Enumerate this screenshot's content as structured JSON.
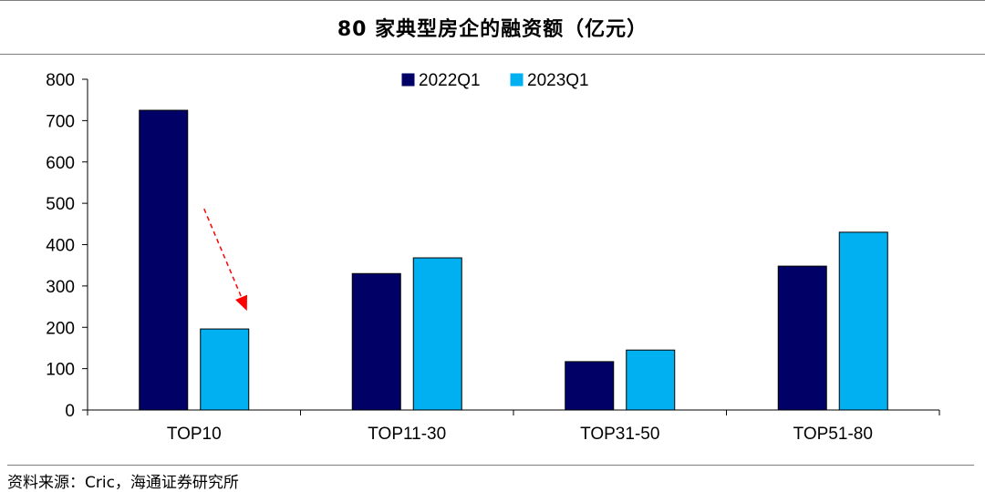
{
  "title": "80 家典型房企的融资额（亿元）",
  "source": "资料来源：Cric，海通证券研究所",
  "chart_data": {
    "type": "bar",
    "title": "80 家典型房企的融资额（亿元）",
    "categories": [
      "TOP10",
      "TOP11-30",
      "TOP31-50",
      "TOP51-80"
    ],
    "series": [
      {
        "name": "2022Q1",
        "color": "#000066",
        "values": [
          725,
          330,
          117,
          348
        ]
      },
      {
        "name": "2023Q1",
        "color": "#00b0f0",
        "values": [
          196,
          368,
          145,
          430
        ]
      }
    ],
    "ylim": [
      0,
      800
    ],
    "yticks": [
      0,
      100,
      200,
      300,
      400,
      500,
      600,
      700,
      800
    ],
    "legend": "top-center",
    "grid": false,
    "annotation_arrow_color": "#ff0000"
  }
}
